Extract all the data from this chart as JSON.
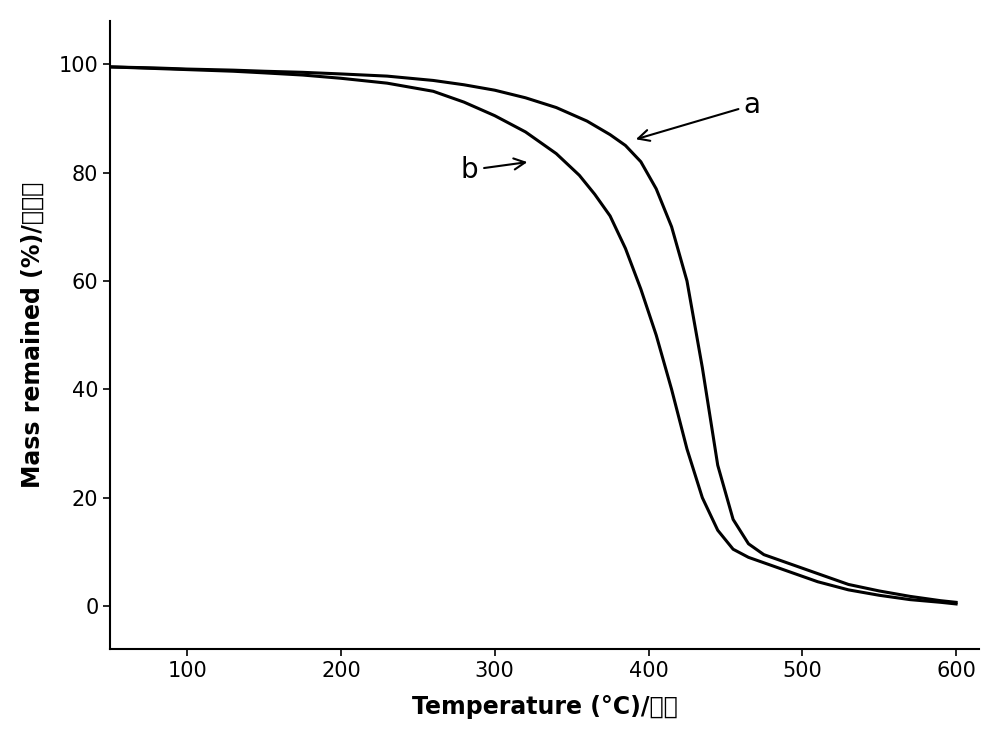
{
  "xlabel_en": "Temperature (",
  "xlabel_deg": "°C",
  "xlabel_cn": ")/温度",
  "ylabel_en": "Mass remained (%)/",
  "ylabel_cn": "失重量",
  "xlim": [
    50,
    615
  ],
  "ylim": [
    -8,
    108
  ],
  "xticks": [
    100,
    200,
    300,
    400,
    500,
    600
  ],
  "yticks": [
    0,
    20,
    40,
    60,
    80,
    100
  ],
  "line_color": "#000000",
  "linewidth": 2.2,
  "label_a": "a",
  "label_b": "b",
  "background_color": "#ffffff",
  "font_size_labels": 17,
  "font_size_ticks": 15,
  "font_size_annotation": 20,
  "curve_a_x": [
    50,
    80,
    100,
    130,
    150,
    175,
    200,
    230,
    260,
    280,
    300,
    320,
    340,
    360,
    375,
    385,
    395,
    405,
    415,
    425,
    435,
    445,
    455,
    465,
    475,
    490,
    510,
    530,
    550,
    570,
    590,
    600
  ],
  "curve_a_y": [
    99.5,
    99.3,
    99.1,
    98.9,
    98.7,
    98.5,
    98.2,
    97.8,
    97.0,
    96.2,
    95.2,
    93.8,
    92.0,
    89.5,
    87.0,
    85.0,
    82.0,
    77.0,
    70.0,
    60.0,
    44.0,
    26.0,
    16.0,
    11.5,
    9.5,
    8.0,
    6.0,
    4.0,
    2.8,
    1.8,
    1.0,
    0.7
  ],
  "curve_b_x": [
    50,
    80,
    100,
    130,
    150,
    175,
    200,
    230,
    260,
    280,
    300,
    320,
    340,
    355,
    365,
    375,
    385,
    395,
    405,
    415,
    425,
    435,
    445,
    455,
    465,
    475,
    490,
    510,
    530,
    550,
    570,
    590,
    600
  ],
  "curve_b_y": [
    99.5,
    99.2,
    99.0,
    98.7,
    98.4,
    98.0,
    97.4,
    96.5,
    95.0,
    93.0,
    90.5,
    87.5,
    83.5,
    79.5,
    76.0,
    72.0,
    66.0,
    58.5,
    50.0,
    40.0,
    29.0,
    20.0,
    14.0,
    10.5,
    9.0,
    8.0,
    6.5,
    4.5,
    3.0,
    2.0,
    1.2,
    0.7,
    0.4
  ]
}
